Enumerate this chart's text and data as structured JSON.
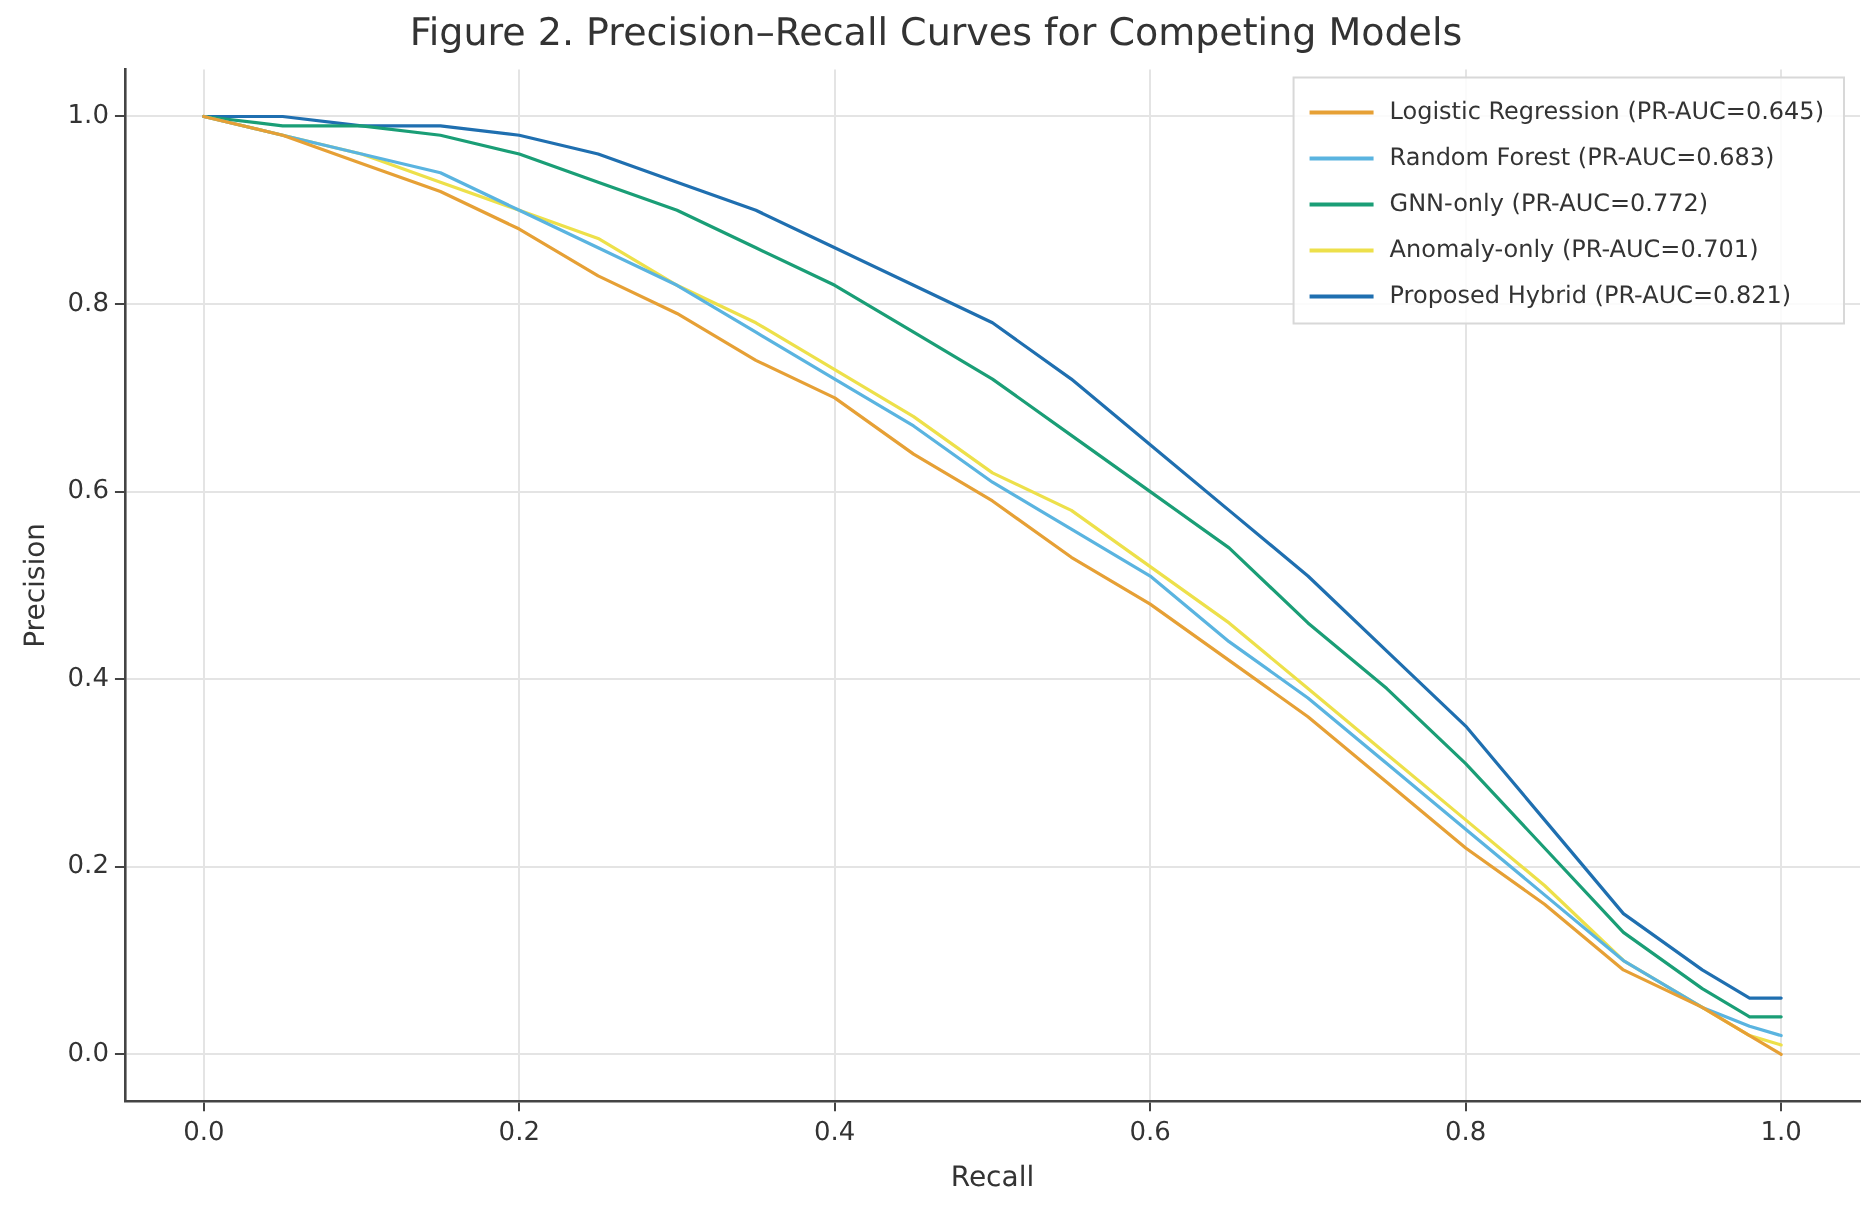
{
  "chart_data": {
    "type": "line",
    "title": "Figure 2. Precision–Recall Curves for Competing Models",
    "xlabel": "Recall",
    "ylabel": "Precision",
    "xlim": [
      -0.05,
      1.05
    ],
    "ylim": [
      -0.05,
      1.05
    ],
    "xticks": [
      {
        "value": 0,
        "label": "0.0"
      },
      {
        "value": 0.2,
        "label": "0.2"
      },
      {
        "value": 0.4,
        "label": "0.4"
      },
      {
        "value": 0.6,
        "label": "0.6"
      },
      {
        "value": 0.8,
        "label": "0.8"
      },
      {
        "value": 1,
        "label": "1.0"
      }
    ],
    "yticks": [
      {
        "value": 0,
        "label": "0.0"
      },
      {
        "value": 0.2,
        "label": "0.2"
      },
      {
        "value": 0.4,
        "label": "0.4"
      },
      {
        "value": 0.6,
        "label": "0.6"
      },
      {
        "value": 0.8,
        "label": "0.8"
      },
      {
        "value": 1,
        "label": "1.0"
      }
    ],
    "x": [
      0,
      0.05,
      0.1,
      0.15,
      0.2,
      0.25,
      0.3,
      0.35,
      0.4,
      0.45,
      0.5,
      0.55,
      0.6,
      0.65,
      0.7,
      0.75,
      0.8,
      0.85,
      0.9,
      0.95,
      0.98,
      1.0
    ],
    "grid": true,
    "legend": "top right",
    "marker": "none",
    "line_style": "solid",
    "series": [
      {
        "name": "Logistic Regression (PR-AUC=0.645)",
        "color": "#e6a035",
        "values": [
          1.0,
          0.98,
          0.95,
          0.92,
          0.88,
          0.83,
          0.79,
          0.74,
          0.7,
          0.64,
          0.59,
          0.53,
          0.48,
          0.42,
          0.36,
          0.29,
          0.22,
          0.16,
          0.09,
          0.05,
          0.02,
          0.0
        ]
      },
      {
        "name": "Random Forest (PR-AUC=0.683)",
        "color": "#5ab4e0",
        "values": [
          1.0,
          0.98,
          0.96,
          0.94,
          0.9,
          0.86,
          0.82,
          0.77,
          0.72,
          0.67,
          0.61,
          0.56,
          0.51,
          0.44,
          0.38,
          0.31,
          0.24,
          0.17,
          0.1,
          0.05,
          0.03,
          0.02
        ]
      },
      {
        "name": "GNN-only (PR-AUC=0.772)",
        "color": "#1a9e76",
        "values": [
          1.0,
          0.99,
          0.99,
          0.98,
          0.96,
          0.93,
          0.9,
          0.86,
          0.82,
          0.77,
          0.72,
          0.66,
          0.6,
          0.54,
          0.46,
          0.39,
          0.31,
          0.22,
          0.13,
          0.07,
          0.04,
          0.04
        ]
      },
      {
        "name": "Anomaly-only (PR-AUC=0.701)",
        "color": "#ede04a",
        "values": [
          1.0,
          0.98,
          0.96,
          0.93,
          0.9,
          0.87,
          0.82,
          0.78,
          0.73,
          0.68,
          0.62,
          0.58,
          0.52,
          0.46,
          0.39,
          0.32,
          0.25,
          0.18,
          0.1,
          0.05,
          0.02,
          0.01
        ]
      },
      {
        "name": "Proposed Hybrid (PR-AUC=0.821)",
        "color": "#1f6fb0",
        "values": [
          1.0,
          1.0,
          0.99,
          0.99,
          0.98,
          0.96,
          0.93,
          0.9,
          0.86,
          0.82,
          0.78,
          0.72,
          0.65,
          0.58,
          0.51,
          0.43,
          0.35,
          0.25,
          0.15,
          0.09,
          0.06,
          0.06
        ]
      }
    ]
  }
}
